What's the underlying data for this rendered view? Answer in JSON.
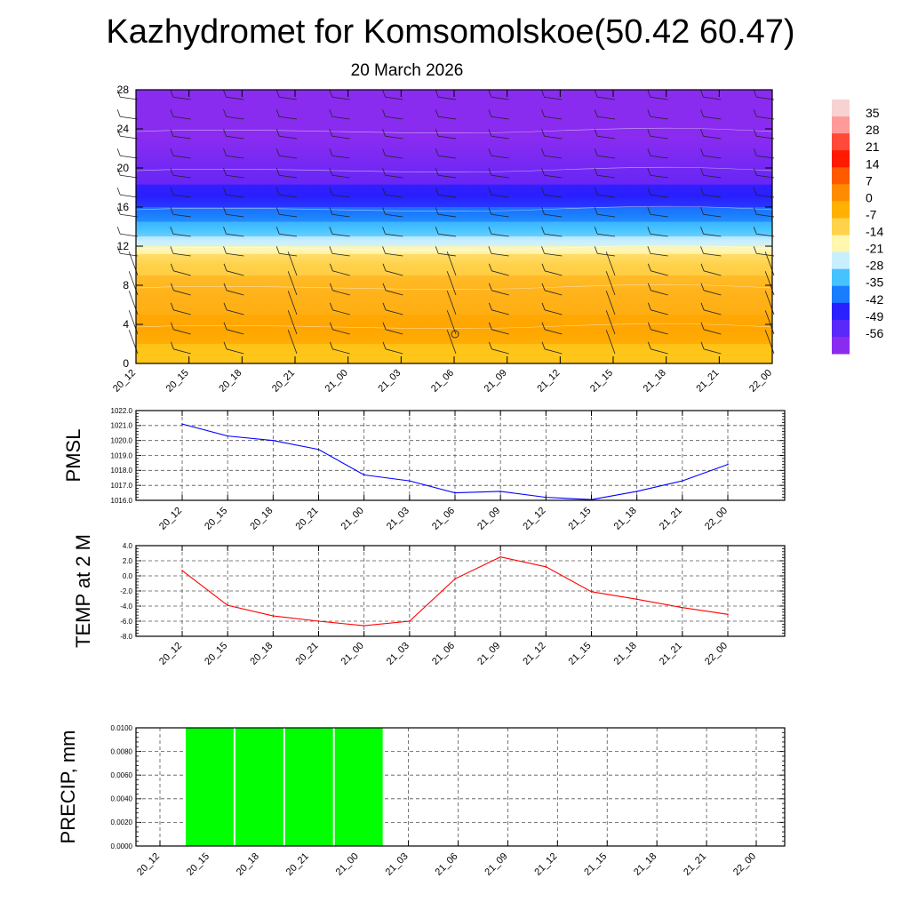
{
  "title": "Kazhydromet for Komsomolskoe(50.42 60.47)",
  "date": "20 March 2026",
  "time_labels": [
    "20_12",
    "20_15",
    "20_18",
    "20_21",
    "21_00",
    "21_03",
    "21_06",
    "21_09",
    "21_12",
    "21_15",
    "21_18",
    "21_21",
    "22_00"
  ],
  "colorbar": {
    "labels": [
      "35",
      "28",
      "21",
      "14",
      "7",
      "0",
      "-7",
      "-14",
      "-21",
      "-28",
      "-35",
      "-42",
      "-49",
      "-56"
    ]
  },
  "chart_data": [
    {
      "type": "heatmap",
      "name": "temperature-wind-cross-section",
      "ylim": [
        0,
        28
      ],
      "yticks": [
        "28",
        "24",
        "20",
        "16",
        "12",
        "8",
        "4",
        "0"
      ],
      "xlabels_ref": "time_labels",
      "bands": [
        {
          "from": 0,
          "to": 2,
          "color": "#ffc61a"
        },
        {
          "from": 2,
          "to": 5,
          "color": "#ffa500"
        },
        {
          "from": 5,
          "to": 9,
          "color": "#ffb21a"
        },
        {
          "from": 9,
          "to": 11.2,
          "color": "#ffd24a"
        },
        {
          "from": 11.2,
          "to": 12,
          "color": "#fff6b0"
        },
        {
          "from": 12,
          "to": 13,
          "color": "#c9efff"
        },
        {
          "from": 13,
          "to": 14.5,
          "color": "#46c3ff"
        },
        {
          "from": 14.5,
          "to": 16,
          "color": "#1a7dff"
        },
        {
          "from": 16,
          "to": 18.3,
          "color": "#2a1fff"
        },
        {
          "from": 18.3,
          "to": 28,
          "color": "#8a2cf0"
        }
      ]
    },
    {
      "type": "line",
      "name": "pmsl",
      "ylabel": "PMSL",
      "ylim": [
        1016.0,
        1022.0
      ],
      "yticks": [
        "1022.0",
        "1021.0",
        "1020.0",
        "1019.0",
        "1018.0",
        "1017.0",
        "1016.0"
      ],
      "categories_ref": "time_labels",
      "values": [
        1021.1,
        1020.3,
        1020.0,
        1019.4,
        1017.7,
        1017.3,
        1016.5,
        1016.6,
        1016.2,
        1016.05,
        1016.6,
        1017.3,
        1018.4
      ],
      "color": "#0000ff"
    },
    {
      "type": "line",
      "name": "temp-2m",
      "ylabel": "TEMP at 2 M",
      "ylim": [
        -8.0,
        4.0
      ],
      "yticks": [
        "4.0",
        "2.0",
        "0.0",
        "-2.0",
        "-4.0",
        "-6.0",
        "-8.0"
      ],
      "categories_ref": "time_labels",
      "values": [
        0.7,
        -3.9,
        -5.3,
        -6.0,
        -6.6,
        -6.0,
        -0.4,
        2.5,
        1.2,
        -2.1,
        -3.1,
        -4.2,
        -5.1
      ],
      "color": "#ff0000"
    },
    {
      "type": "bar",
      "name": "precip",
      "ylabel": "PRECIP, mm",
      "ylim": [
        0.0,
        0.01
      ],
      "yticks": [
        "0.0100",
        "0.0080",
        "0.0060",
        "0.0040",
        "0.0020",
        "0.0000"
      ],
      "categories_ref": "time_labels",
      "values": [
        0,
        0.01,
        0.01,
        0.01,
        0.01,
        0,
        0,
        0,
        0,
        0,
        0,
        0,
        0
      ],
      "color": "#00ff00"
    }
  ]
}
